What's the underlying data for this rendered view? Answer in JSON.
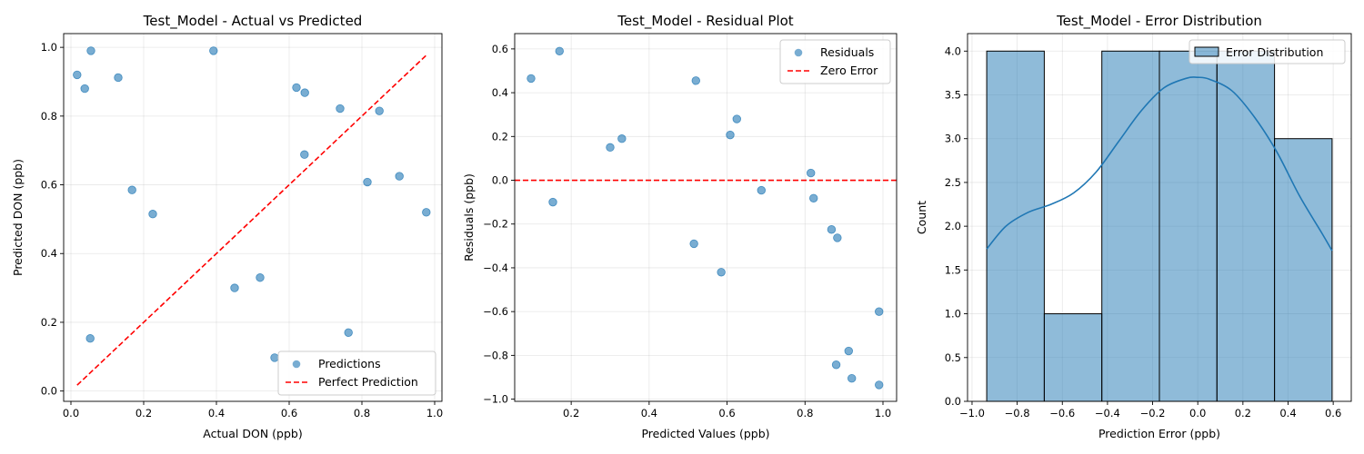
{
  "chart_data": [
    {
      "type": "scatter",
      "title": "Test_Model - Actual vs Predicted",
      "xlabel": "Actual DON (ppb)",
      "ylabel": "Predicted DON (ppb)",
      "xlim": [
        -0.02,
        1.02
      ],
      "ylim": [
        -0.03,
        1.04
      ],
      "xticks": [
        0.0,
        0.2,
        0.4,
        0.6,
        0.8,
        1.0
      ],
      "yticks": [
        0.0,
        0.2,
        0.4,
        0.6,
        0.8,
        1.0
      ],
      "grid": true,
      "legend_position": "lower-right",
      "series": [
        {
          "name": "Predictions",
          "kind": "scatter",
          "color": "#1f77b4",
          "points": [
            [
              0.017,
              0.92
            ],
            [
              0.038,
              0.88
            ],
            [
              0.055,
              0.99
            ],
            [
              0.053,
              0.153
            ],
            [
              0.13,
              0.912
            ],
            [
              0.168,
              0.585
            ],
            [
              0.225,
              0.515
            ],
            [
              0.392,
              0.99
            ],
            [
              0.45,
              0.3
            ],
            [
              0.52,
              0.33
            ],
            [
              0.56,
              0.097
            ],
            [
              0.62,
              0.883
            ],
            [
              0.643,
              0.868
            ],
            [
              0.642,
              0.688
            ],
            [
              0.74,
              0.822
            ],
            [
              0.763,
              0.17
            ],
            [
              0.815,
              0.608
            ],
            [
              0.848,
              0.815
            ],
            [
              0.903,
              0.625
            ],
            [
              0.977,
              0.52
            ]
          ]
        },
        {
          "name": "Perfect Prediction",
          "kind": "line",
          "style": "dashed",
          "color": "#ff0000",
          "points": [
            [
              0.017,
              0.017
            ],
            [
              0.977,
              0.977
            ]
          ]
        }
      ]
    },
    {
      "type": "scatter",
      "title": "Test_Model - Residual Plot",
      "xlabel": "Predicted Values (ppb)",
      "ylabel": "Residuals (ppb)",
      "xlim": [
        0.055,
        1.035
      ],
      "ylim": [
        -1.01,
        0.67
      ],
      "xticks": [
        0.2,
        0.4,
        0.6,
        0.8,
        1.0
      ],
      "yticks": [
        -1.0,
        -0.8,
        -0.6,
        -0.4,
        -0.2,
        0.0,
        0.2,
        0.4,
        0.6
      ],
      "grid": true,
      "legend_position": "upper-right",
      "series": [
        {
          "name": "Residuals",
          "kind": "scatter",
          "color": "#1f77b4",
          "points": [
            [
              0.097,
              0.465
            ],
            [
              0.153,
              -0.1
            ],
            [
              0.17,
              0.59
            ],
            [
              0.3,
              0.15
            ],
            [
              0.33,
              0.19
            ],
            [
              0.515,
              -0.29
            ],
            [
              0.52,
              0.455
            ],
            [
              0.585,
              -0.42
            ],
            [
              0.608,
              0.207
            ],
            [
              0.625,
              0.28
            ],
            [
              0.688,
              -0.046
            ],
            [
              0.815,
              0.033
            ],
            [
              0.822,
              -0.082
            ],
            [
              0.868,
              -0.225
            ],
            [
              0.883,
              -0.263
            ],
            [
              0.88,
              -0.843
            ],
            [
              0.912,
              -0.78
            ],
            [
              0.92,
              -0.905
            ],
            [
              0.99,
              -0.6
            ],
            [
              0.99,
              -0.935
            ]
          ]
        },
        {
          "name": "Zero Error",
          "kind": "hline",
          "style": "dashed",
          "color": "#ff0000",
          "y": 0.0
        }
      ]
    },
    {
      "type": "histogram",
      "title": "Test_Model - Error Distribution",
      "xlabel": "Prediction Error (ppb)",
      "ylabel": "Count",
      "xlim": [
        -1.02,
        0.68
      ],
      "ylim": [
        0,
        4.2
      ],
      "xticks": [
        -1.0,
        -0.8,
        -0.6,
        -0.4,
        -0.2,
        0.0,
        0.2,
        0.4,
        0.6
      ],
      "yticks": [
        0.0,
        0.5,
        1.0,
        1.5,
        2.0,
        2.5,
        3.0,
        3.5,
        4.0
      ],
      "grid": true,
      "legend_position": "upper-right",
      "bin_edges": [
        -0.935,
        -0.68,
        -0.425,
        -0.17,
        0.085,
        0.34,
        0.595
      ],
      "counts": [
        4,
        1,
        4,
        4,
        4,
        3
      ],
      "kde": {
        "x": [
          -0.935,
          -0.85,
          -0.75,
          -0.65,
          -0.55,
          -0.45,
          -0.35,
          -0.25,
          -0.15,
          -0.05,
          0.0,
          0.05,
          0.15,
          0.25,
          0.35,
          0.45,
          0.55,
          0.595
        ],
        "y": [
          1.74,
          2.0,
          2.16,
          2.25,
          2.38,
          2.62,
          2.97,
          3.32,
          3.58,
          3.69,
          3.7,
          3.68,
          3.55,
          3.25,
          2.85,
          2.35,
          1.92,
          1.72
        ]
      },
      "series": [
        {
          "name": "Error Distribution",
          "kind": "bars",
          "color": "#1f77b4"
        }
      ]
    }
  ]
}
